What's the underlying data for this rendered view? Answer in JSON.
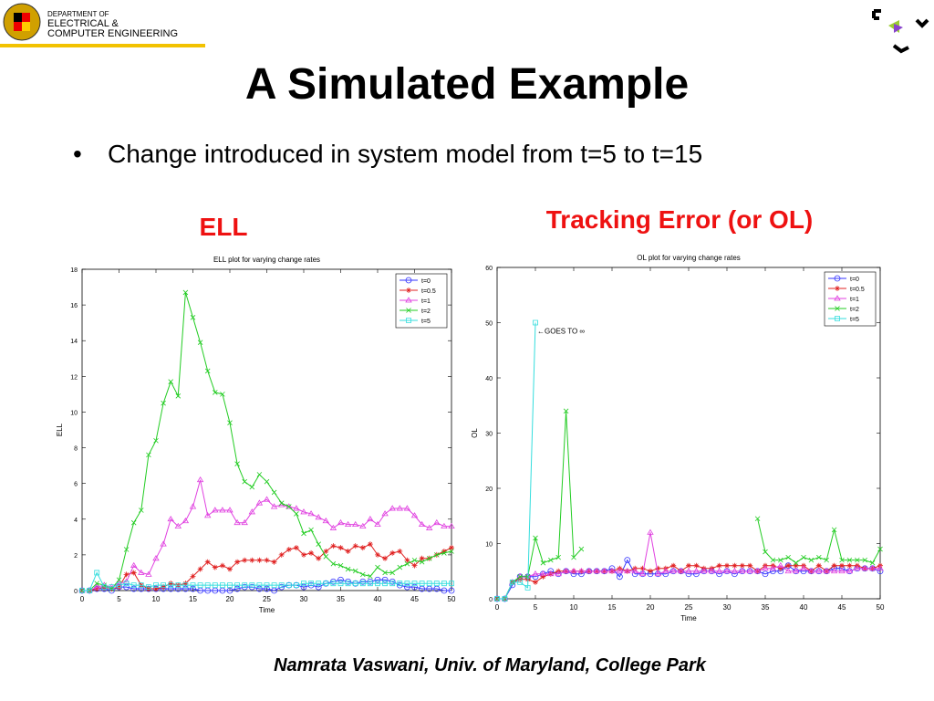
{
  "logo": {
    "line1": "DEPARTMENT OF",
    "line2": "ELECTRICAL &",
    "line3": "COMPUTER ENGINEERING"
  },
  "title": "A Simulated Example",
  "bullet": "Change introduced in system model from t=5 to t=15",
  "heading_left": "ELL",
  "heading_right": "Tracking Error (or OL)",
  "footer": "Namrata Vaswani, Univ. of Maryland, College Park",
  "chart_data": [
    {
      "type": "line",
      "title": "ELL plot for varying change rates",
      "xlabel": "Time",
      "ylabel": "ELL",
      "x": [
        0,
        1,
        2,
        3,
        4,
        5,
        6,
        7,
        8,
        9,
        10,
        11,
        12,
        13,
        14,
        15,
        16,
        17,
        18,
        19,
        20,
        21,
        22,
        23,
        24,
        25,
        26,
        27,
        28,
        29,
        30,
        31,
        32,
        33,
        34,
        35,
        36,
        37,
        38,
        39,
        40,
        41,
        42,
        43,
        44,
        45,
        46,
        47,
        48,
        49,
        50
      ],
      "xlim": [
        0,
        50
      ],
      "xticks": [
        0,
        5,
        10,
        15,
        20,
        25,
        30,
        35,
        40,
        45,
        50
      ],
      "ylim": [
        0,
        18
      ],
      "yticks": [
        0,
        2,
        4,
        6,
        8,
        10,
        12,
        14,
        16,
        18
      ],
      "legend": "upper right",
      "series": [
        {
          "name": "t=0",
          "color": "#3333ff",
          "marker": "o",
          "values": [
            0,
            0,
            0.1,
            0.1,
            0,
            0.2,
            0.2,
            0.1,
            0.1,
            0.1,
            0.1,
            0.1,
            0.1,
            0.1,
            0.1,
            0.1,
            0,
            0,
            0,
            0,
            0,
            0.1,
            0.2,
            0.2,
            0.1,
            0.1,
            0,
            0.2,
            0.3,
            0.3,
            0.2,
            0.3,
            0.2,
            0.4,
            0.5,
            0.6,
            0.5,
            0.4,
            0.5,
            0.5,
            0.6,
            0.6,
            0.5,
            0.3,
            0.2,
            0.2,
            0.1,
            0.1,
            0.1,
            0,
            0
          ]
        },
        {
          "name": "t=0.5",
          "color": "#e02020",
          "marker": "*",
          "values": [
            0,
            0,
            0.1,
            0.2,
            0.1,
            0.2,
            0.9,
            1.0,
            0.3,
            0.1,
            0.1,
            0.2,
            0.4,
            0.3,
            0.4,
            0.8,
            1.2,
            1.6,
            1.3,
            1.4,
            1.2,
            1.6,
            1.7,
            1.7,
            1.7,
            1.7,
            1.6,
            2.0,
            2.3,
            2.4,
            2.0,
            2.1,
            1.8,
            2.2,
            2.5,
            2.4,
            2.2,
            2.5,
            2.4,
            2.6,
            2.0,
            1.8,
            2.1,
            2.2,
            1.7,
            1.4,
            1.8,
            1.8,
            2.0,
            2.2,
            2.4
          ]
        },
        {
          "name": "t=1",
          "color": "#e040e0",
          "marker": "^",
          "values": [
            0,
            0,
            0.2,
            0.3,
            0.2,
            0.4,
            0.5,
            1.4,
            1.0,
            0.9,
            1.8,
            2.6,
            4.0,
            3.6,
            3.9,
            4.7,
            6.2,
            4.2,
            4.5,
            4.5,
            4.5,
            3.8,
            3.8,
            4.4,
            4.9,
            5.1,
            4.7,
            4.8,
            4.7,
            4.6,
            4.4,
            4.3,
            4.1,
            3.9,
            3.5,
            3.8,
            3.7,
            3.7,
            3.6,
            4.0,
            3.7,
            4.3,
            4.6,
            4.6,
            4.6,
            4.2,
            3.7,
            3.5,
            3.8,
            3.6,
            3.6
          ]
        },
        {
          "name": "t=2",
          "color": "#22cc22",
          "marker": "x",
          "values": [
            0,
            0,
            0.4,
            0.3,
            0.1,
            0.6,
            2.3,
            3.8,
            4.5,
            7.6,
            8.4,
            10.5,
            11.7,
            10.9,
            16.7,
            15.3,
            13.9,
            12.3,
            11.1,
            11.0,
            9.4,
            7.1,
            6.1,
            5.8,
            6.5,
            6.1,
            5.5,
            4.9,
            4.7,
            4.3,
            3.2,
            3.4,
            2.6,
            1.9,
            1.5,
            1.4,
            1.2,
            1.1,
            0.9,
            0.8,
            1.3,
            1.0,
            1.0,
            1.3,
            1.5,
            1.7,
            1.6,
            1.8,
            2.0,
            2.1,
            2.2
          ]
        },
        {
          "name": "t=5",
          "color": "#33dddd",
          "marker": "s",
          "values": [
            0,
            0,
            1,
            0.2,
            0.2,
            0.3,
            0.4,
            0.3,
            0.3,
            0.2,
            0.3,
            0.3,
            0.3,
            0.3,
            0.3,
            0.3,
            0.3,
            0.3,
            0.3,
            0.3,
            0.3,
            0.3,
            0.3,
            0.3,
            0.3,
            0.3,
            0.3,
            0.3,
            0.3,
            0.3,
            0.4,
            0.4,
            0.4,
            0.4,
            0.4,
            0.4,
            0.4,
            0.4,
            0.4,
            0.4,
            0.4,
            0.4,
            0.4,
            0.4,
            0.4,
            0.4,
            0.4,
            0.4,
            0.4,
            0.4,
            0.4
          ]
        }
      ]
    },
    {
      "type": "line",
      "title": "OL plot for varying change rates",
      "xlabel": "Time",
      "ylabel": "OL",
      "annotation": "←GOES TO ∞",
      "x": [
        0,
        1,
        2,
        3,
        4,
        5,
        6,
        7,
        8,
        9,
        10,
        11,
        12,
        13,
        14,
        15,
        16,
        17,
        18,
        19,
        20,
        21,
        22,
        23,
        24,
        25,
        26,
        27,
        28,
        29,
        30,
        31,
        32,
        33,
        34,
        35,
        36,
        37,
        38,
        39,
        40,
        41,
        42,
        43,
        44,
        45,
        46,
        47,
        48,
        49,
        50
      ],
      "xlim": [
        0,
        50
      ],
      "xticks": [
        0,
        5,
        10,
        15,
        20,
        25,
        30,
        35,
        40,
        45,
        50
      ],
      "ylim": [
        0,
        60
      ],
      "yticks": [
        0,
        10,
        20,
        30,
        40,
        50,
        60
      ],
      "legend": "upper right",
      "series": [
        {
          "name": "t=0",
          "color": "#3333ff",
          "marker": "o",
          "values": [
            0,
            0,
            2.5,
            4,
            4,
            4,
            4.5,
            5,
            4.5,
            5,
            4.5,
            4.5,
            5,
            5,
            5,
            5.5,
            4,
            7,
            4.5,
            4.5,
            4.5,
            4.5,
            4.5,
            5,
            5,
            4.5,
            4.5,
            5,
            5,
            4.5,
            5,
            4.5,
            5,
            5,
            5,
            4.5,
            5,
            5,
            6,
            5,
            5,
            5,
            5,
            5,
            5.5,
            5.5,
            5,
            5.5,
            5.5,
            5.5,
            5
          ]
        },
        {
          "name": "t=0.5",
          "color": "#e02020",
          "marker": "*",
          "values": [
            0,
            0,
            3,
            3.5,
            3.5,
            3,
            4,
            4.5,
            5,
            5,
            5,
            5,
            5,
            5,
            5,
            5,
            5.5,
            5,
            5.5,
            5.5,
            5,
            5.5,
            5.5,
            6,
            5,
            6,
            6,
            5.5,
            5.5,
            6,
            6,
            6,
            6,
            6,
            5,
            6,
            6,
            5.5,
            6,
            6,
            6,
            5,
            6,
            5,
            6,
            6,
            6,
            6,
            5.5,
            5.5,
            6
          ]
        },
        {
          "name": "t=1",
          "color": "#e040e0",
          "marker": "^",
          "values": [
            0,
            0,
            3,
            4,
            4,
            4.5,
            4.5,
            4.5,
            4.5,
            5,
            5,
            5,
            5,
            5,
            5,
            5,
            5,
            5,
            5,
            4.5,
            12,
            4.5,
            5,
            5,
            5,
            5,
            5,
            5,
            5,
            5,
            5,
            5,
            5,
            5,
            5,
            5.5,
            5.5,
            6,
            5,
            5,
            5.5,
            5,
            5,
            5,
            5,
            5,
            5,
            5.5,
            5.5,
            5.5,
            5.5
          ]
        },
        {
          "name": "t=2",
          "color": "#22cc22",
          "marker": "x",
          "values": [
            0,
            0,
            3,
            4,
            4,
            11,
            6.5,
            7,
            7.5,
            34,
            7.5,
            9,
            null,
            null,
            null,
            null,
            null,
            null,
            null,
            null,
            null,
            null,
            null,
            null,
            null,
            null,
            null,
            null,
            null,
            null,
            null,
            null,
            null,
            null,
            14.5,
            8.5,
            7,
            7,
            7.5,
            6.5,
            7.5,
            7,
            7.5,
            7,
            12.5,
            7,
            7,
            7,
            7,
            6.5,
            9
          ]
        },
        {
          "name": "t=5",
          "color": "#33dddd",
          "marker": "s",
          "values": [
            0,
            0,
            3,
            3,
            2,
            50,
            null,
            null,
            null,
            null,
            null,
            null,
            null,
            null,
            null,
            null,
            null,
            null,
            null,
            null,
            null,
            null,
            null,
            null,
            null,
            null,
            null,
            null,
            null,
            null,
            null,
            null,
            null,
            null,
            null,
            null,
            null,
            null,
            null,
            null,
            null,
            null,
            null,
            null,
            null,
            null,
            null,
            null,
            null,
            null,
            null
          ]
        }
      ]
    }
  ]
}
